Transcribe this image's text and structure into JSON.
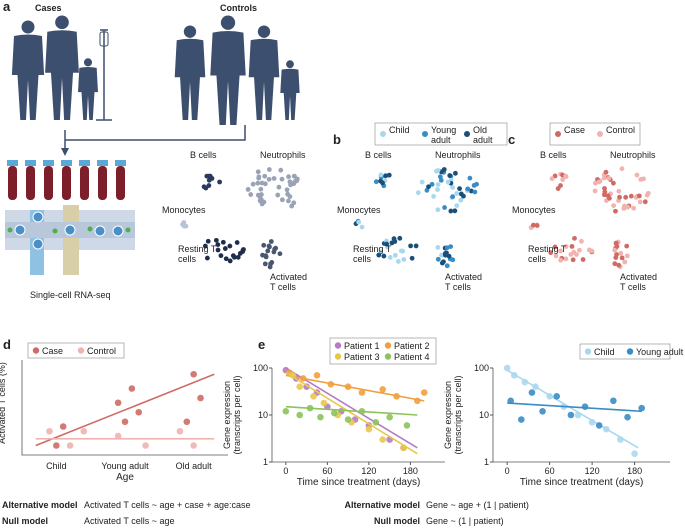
{
  "a": {
    "label": "a",
    "cases": "Cases",
    "controls": "Controls",
    "method": "Single-cell RNA-seq",
    "figure_color": "#3d4f6e",
    "clusters": [
      "B cells",
      "Neutrophils",
      "Monocytes",
      "Resting T cells",
      "Activated T cells"
    ],
    "cluster_colors": [
      "#2a3a5c",
      "#9aa3b5",
      "#b8c2d6",
      "#1f2d4d",
      "#4a5670"
    ]
  },
  "b": {
    "label": "b",
    "legend": [
      {
        "name": "Child",
        "color": "#a8d8ef"
      },
      {
        "name": "Young adult",
        "color": "#3a8cc4"
      },
      {
        "name": "Old adult",
        "color": "#1a4f7a"
      }
    ],
    "clusters": [
      "B cells",
      "Neutrophils",
      "Monocytes",
      "Resting T cells",
      "Activated T cells"
    ]
  },
  "c": {
    "label": "c",
    "legend": [
      {
        "name": "Case",
        "color": "#d06a64"
      },
      {
        "name": "Control",
        "color": "#f0b3b0"
      }
    ],
    "clusters": [
      "B cells",
      "Neutrophils",
      "Monocytes",
      "Resting T cells",
      "Activated T cells"
    ]
  },
  "d": {
    "label": "d",
    "chart_data": {
      "type": "scatter",
      "y_label": "Activated T cells (%)",
      "x_label": "Age",
      "categories": [
        "Child",
        "Young adult",
        "Old adult"
      ],
      "xlim": [
        -0.5,
        2.5
      ],
      "ylim": [
        0,
        1
      ],
      "series": [
        {
          "name": "Case",
          "color": "#d06a64",
          "x": [
            0,
            0.1,
            1,
            0.9,
            1.2,
            1.1,
            2,
            2.1,
            1.9
          ],
          "values": [
            0.1,
            0.3,
            0.35,
            0.55,
            0.45,
            0.7,
            0.85,
            0.6,
            0.35
          ],
          "fit": {
            "x": [
              -0.3,
              2.3
            ],
            "values": [
              0.1,
              0.85
            ]
          }
        },
        {
          "name": "Control",
          "color": "#f0b3b0",
          "x": [
            -0.1,
            0.2,
            0.4,
            0.9,
            1.3,
            2.0,
            1.8
          ],
          "values": [
            0.25,
            0.1,
            0.25,
            0.2,
            0.1,
            0.1,
            0.25
          ],
          "fit": {
            "x": [
              -0.3,
              2.3
            ],
            "values": [
              0.17,
              0.17
            ]
          }
        }
      ]
    },
    "models": [
      {
        "name": "Alternative model",
        "formula": "Activated T cells ~ age + case + age:case"
      },
      {
        "name": "Null model",
        "formula": "Activated T cells ~ age"
      }
    ]
  },
  "e": {
    "label": "e",
    "charts": [
      {
        "type": "scatter",
        "y_label": "Gene expression (transcripts per cell)",
        "x_label": "Time since treatment (days)",
        "log_y": true,
        "xlim": [
          -20,
          230
        ],
        "ylim": [
          1,
          100
        ],
        "xticks": [
          0,
          60,
          120,
          180
        ],
        "yticks": [
          1,
          10,
          100
        ],
        "series": [
          {
            "name": "Patient 1",
            "color": "#b57bc5",
            "x": [
              0,
              15,
              30,
              45,
              60,
              80,
              100,
              120,
              150,
              170
            ],
            "values": [
              90,
              60,
              40,
              30,
              15,
              12,
              8,
              6,
              3,
              2
            ],
            "fit": {
              "x": [
                0,
                190
              ],
              "values": [
                100,
                2
              ]
            }
          },
          {
            "name": "Patient 2",
            "color": "#f0a040",
            "x": [
              5,
              25,
              45,
              65,
              90,
              110,
              140,
              160,
              190,
              200
            ],
            "values": [
              80,
              60,
              70,
              45,
              40,
              30,
              35,
              25,
              20,
              30
            ],
            "fit": {
              "x": [
                0,
                200
              ],
              "values": [
                70,
                20
              ]
            }
          },
          {
            "name": "Patient 3",
            "color": "#e8c84a",
            "x": [
              10,
              20,
              40,
              55,
              75,
              95,
              120,
              140,
              170
            ],
            "values": [
              70,
              40,
              25,
              18,
              10,
              7,
              5,
              3,
              2
            ],
            "fit": {
              "x": [
                0,
                190
              ],
              "values": [
                80,
                1.5
              ]
            }
          },
          {
            "name": "Patient 4",
            "color": "#8cc35a",
            "x": [
              0,
              20,
              35,
              50,
              70,
              90,
              110,
              130,
              150,
              175
            ],
            "values": [
              12,
              10,
              14,
              9,
              11,
              8,
              12,
              7,
              9,
              6
            ],
            "fit": {
              "x": [
                0,
                190
              ],
              "values": [
                15,
                10
              ]
            }
          }
        ]
      },
      {
        "type": "scatter",
        "y_label": "Gene expression (transcripts per cell)",
        "x_label": "Time since treatment (days)",
        "log_y": true,
        "xlim": [
          -20,
          230
        ],
        "ylim": [
          1,
          100
        ],
        "xticks": [
          0,
          60,
          120,
          180
        ],
        "yticks": [
          1,
          10,
          100
        ],
        "series": [
          {
            "name": "Child",
            "color": "#a8d8ef",
            "x": [
              0,
              10,
              25,
              40,
              60,
              80,
              100,
              120,
              140,
              160,
              180
            ],
            "values": [
              100,
              70,
              50,
              40,
              25,
              15,
              10,
              7,
              5,
              3,
              1.5
            ],
            "fit": {
              "x": [
                0,
                185
              ],
              "values": [
                90,
                2
              ]
            }
          },
          {
            "name": "Young adult",
            "color": "#3a8cc4",
            "x": [
              5,
              20,
              35,
              50,
              70,
              90,
              110,
              130,
              150,
              170,
              190
            ],
            "values": [
              20,
              8,
              30,
              12,
              25,
              10,
              15,
              6,
              20,
              9,
              14
            ],
            "fit": {
              "x": [
                0,
                190
              ],
              "values": [
                18,
                12
              ]
            }
          }
        ]
      }
    ],
    "models": [
      {
        "name": "Alternative model",
        "formula": "Gene ~ age + (1 | patient)"
      },
      {
        "name": "Null model",
        "formula": "Gene ~ (1 | patient)"
      }
    ]
  }
}
